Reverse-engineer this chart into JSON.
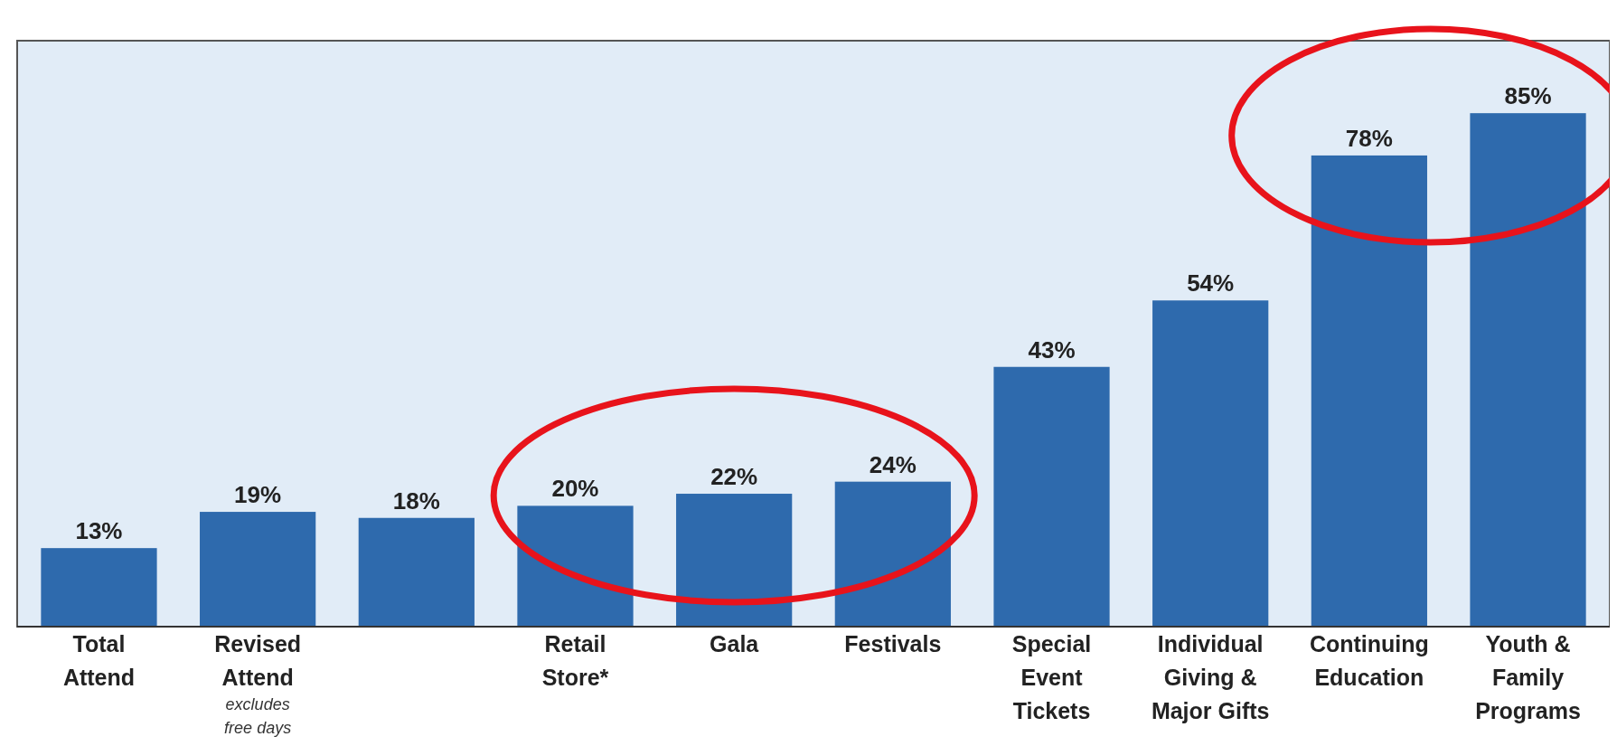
{
  "chart_data": {
    "type": "bar",
    "categories": [
      "Total\nAttend",
      "Revised\nAttend",
      null,
      "Retail\nStore*",
      "Gala",
      "Festivals",
      "Special\nEvent\nTickets",
      "Individual\nGiving &\nMajor Gifts",
      "Continuing\nEducation",
      "Youth &\nFamily\nPrograms"
    ],
    "values": [
      13,
      19,
      18,
      20,
      22,
      24,
      43,
      54,
      78,
      85
    ],
    "value_labels": [
      "13%",
      "19%",
      "18%",
      "20%",
      "22%",
      "24%",
      "43%",
      "54%",
      "78%",
      "85%"
    ],
    "color": "#2e6aad",
    "ylim": [
      0,
      97
    ],
    "tick_labels": "x",
    "annotations": [
      "excludes\nfree days"
    ]
  }
}
